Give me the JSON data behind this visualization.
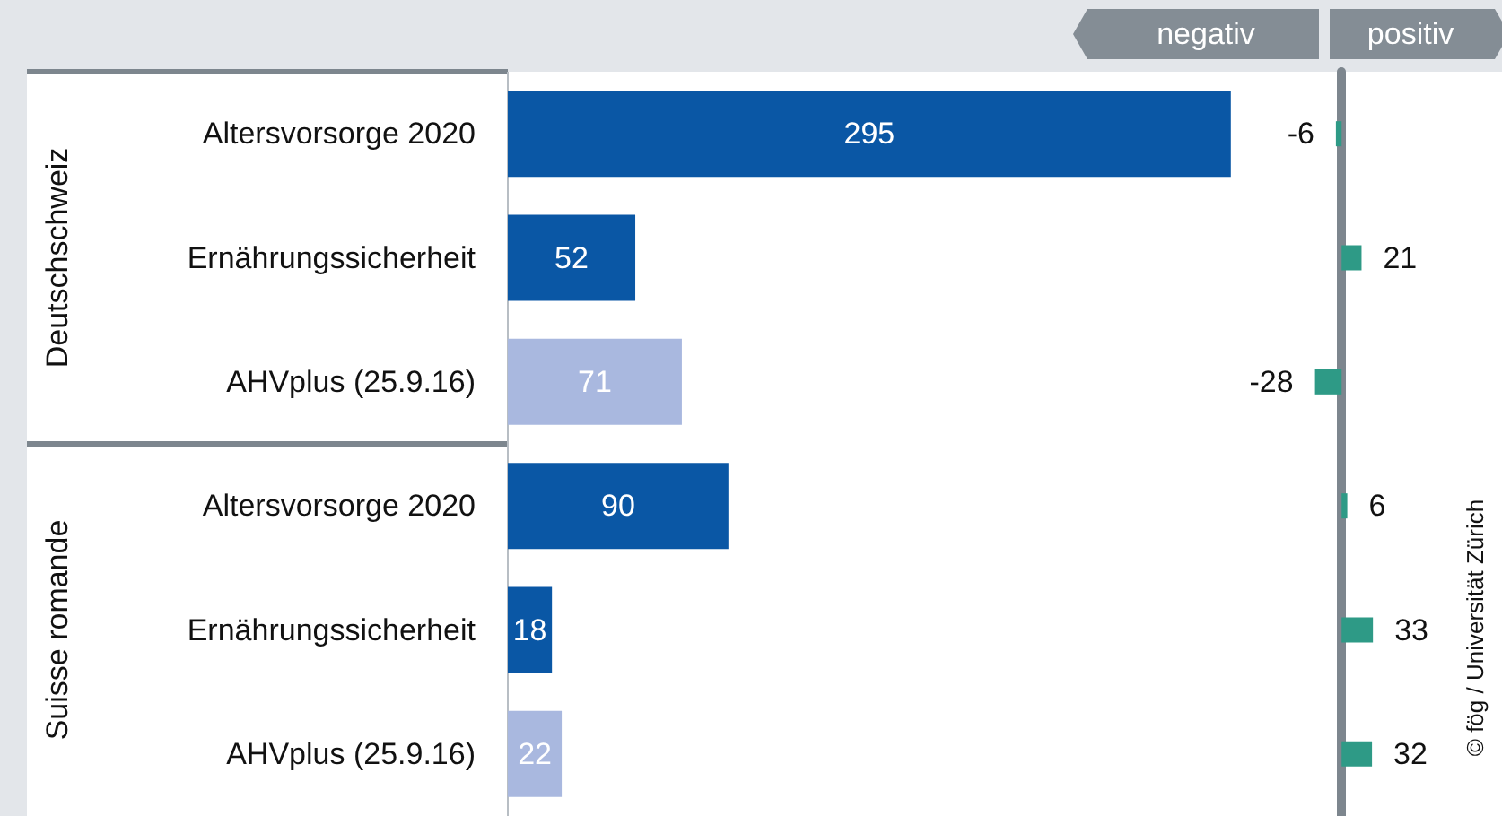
{
  "chart_data": [
    {
      "type": "bar",
      "orientation": "horizontal",
      "categories": [
        "Altersvorsorge 2020",
        "Ernährungssicherheit",
        "AHVplus (25.9.16)",
        "Altersvorsorge 2020",
        "Ernährungssicherheit",
        "AHVplus (25.9.16)"
      ],
      "values": [
        295,
        52,
        71,
        90,
        18,
        22
      ],
      "colors": [
        "#0a57a5",
        "#0a57a5",
        "#a9b8df",
        "#0a57a5",
        "#0a57a5",
        "#a9b8df"
      ],
      "data_labels": true,
      "tick_labels": "y",
      "annotations": [
        "Deutschschweiz",
        "Suisse romande"
      ]
    },
    {
      "type": "bar",
      "orientation": "horizontal",
      "categories": [
        null,
        null,
        null,
        null,
        null,
        null
      ],
      "values": [
        -6,
        21,
        -28,
        6,
        33,
        32
      ],
      "color": "#2e9a86",
      "data_labels": true,
      "tick_labels": false,
      "annotations": [
        "negativ",
        "positiv",
        "© fög / Universität Zürich"
      ]
    }
  ]
}
